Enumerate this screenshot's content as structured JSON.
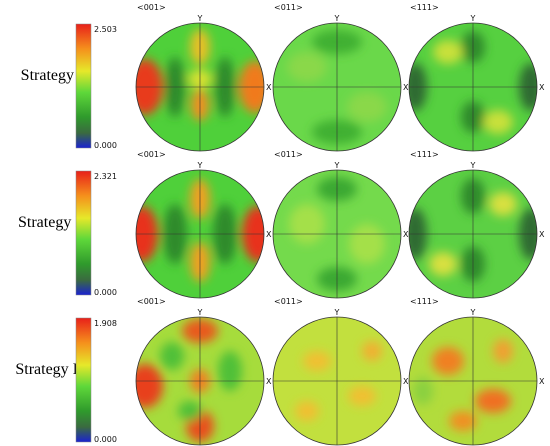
{
  "rows": [
    {
      "label": "Strategy I",
      "scale_max": "2.503",
      "scale_min": "0.000",
      "figures": [
        {
          "title": "<001>",
          "y_axis": "Y",
          "x_axis": "X"
        },
        {
          "title": "<011>",
          "y_axis": "Y",
          "x_axis": "X"
        },
        {
          "title": "<111>",
          "y_axis": "Y",
          "x_axis": "X"
        }
      ]
    },
    {
      "label": "Strategy II",
      "scale_max": "2.321",
      "scale_min": "0.000",
      "figures": [
        {
          "title": "<001>",
          "y_axis": "Y",
          "x_axis": "X"
        },
        {
          "title": "<011>",
          "y_axis": "Y",
          "x_axis": "X"
        },
        {
          "title": "<111>",
          "y_axis": "Y",
          "x_axis": "X"
        }
      ]
    },
    {
      "label": "Strategy III",
      "scale_max": "1.908",
      "scale_min": "0.000",
      "figures": [
        {
          "title": "<001>",
          "y_axis": "Y",
          "x_axis": "X"
        },
        {
          "title": "<011>",
          "y_axis": "Y",
          "x_axis": "X"
        },
        {
          "title": "<111>",
          "y_axis": "Y",
          "x_axis": "X"
        }
      ]
    }
  ]
}
